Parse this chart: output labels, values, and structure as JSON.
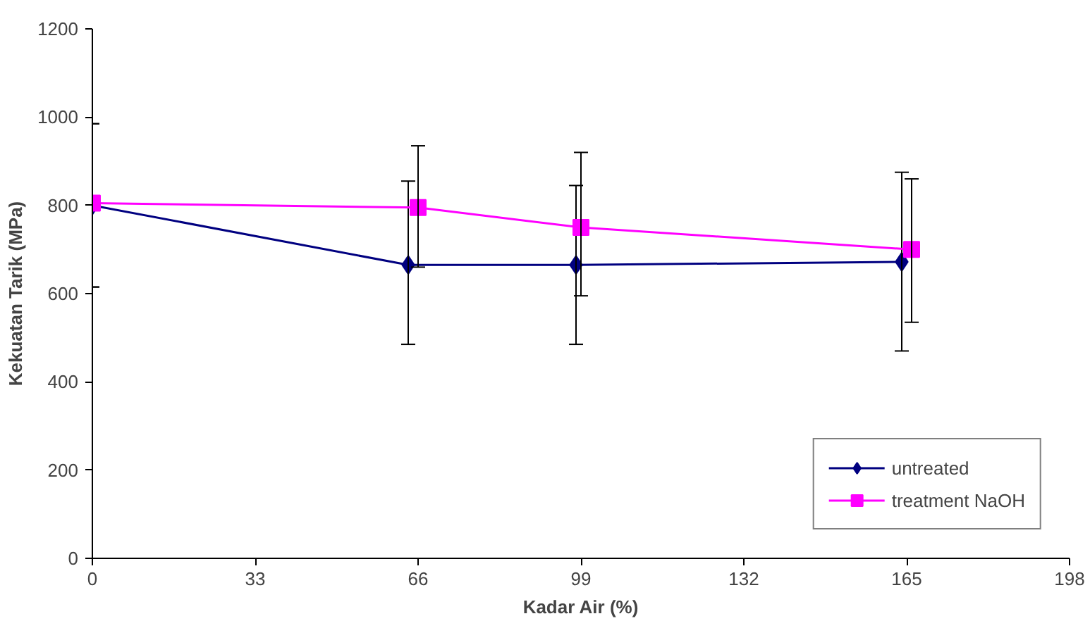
{
  "chart_data": {
    "type": "line",
    "xlabel": "Kadar Air (%)",
    "ylabel": "Kekuatan Tarik (MPa)",
    "xlim": [
      0,
      198
    ],
    "xticks": [
      0,
      33,
      66,
      99,
      132,
      165,
      198
    ],
    "ylim": [
      0,
      1200
    ],
    "yticks": [
      0,
      200,
      400,
      600,
      800,
      1000,
      1200
    ],
    "grid": false,
    "legend": "bottom right",
    "series": [
      {
        "name": "untreated",
        "color": "#000080",
        "marker": "diamond",
        "x": [
          0,
          64,
          98,
          164
        ],
        "values": [
          800,
          665,
          665,
          672
        ],
        "errors": [
          [
            615,
            985
          ],
          [
            485,
            855
          ],
          [
            485,
            845
          ],
          [
            470,
            875
          ]
        ]
      },
      {
        "name": "treatment NaOH",
        "color": "#ff00ff",
        "marker": "square",
        "x": [
          0,
          66,
          99,
          166
        ],
        "values": [
          805,
          795,
          750,
          700
        ],
        "errors": [
          [
            615,
            985
          ],
          [
            660,
            935
          ],
          [
            595,
            920
          ],
          [
            535,
            860
          ]
        ]
      }
    ]
  }
}
